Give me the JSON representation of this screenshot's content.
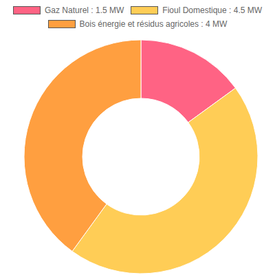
{
  "chart_data": {
    "type": "donut",
    "categories": [
      "Gaz Naturel : 1.5 MW",
      "Fioul Domestique : 4.5 MW",
      "Bois énergie et résidus agricoles : 4 MW"
    ],
    "values": [
      1.5,
      4.5,
      4
    ],
    "colors": [
      "#ff6384",
      "#ffcd56",
      "#ff9f40"
    ],
    "legend": "top"
  }
}
